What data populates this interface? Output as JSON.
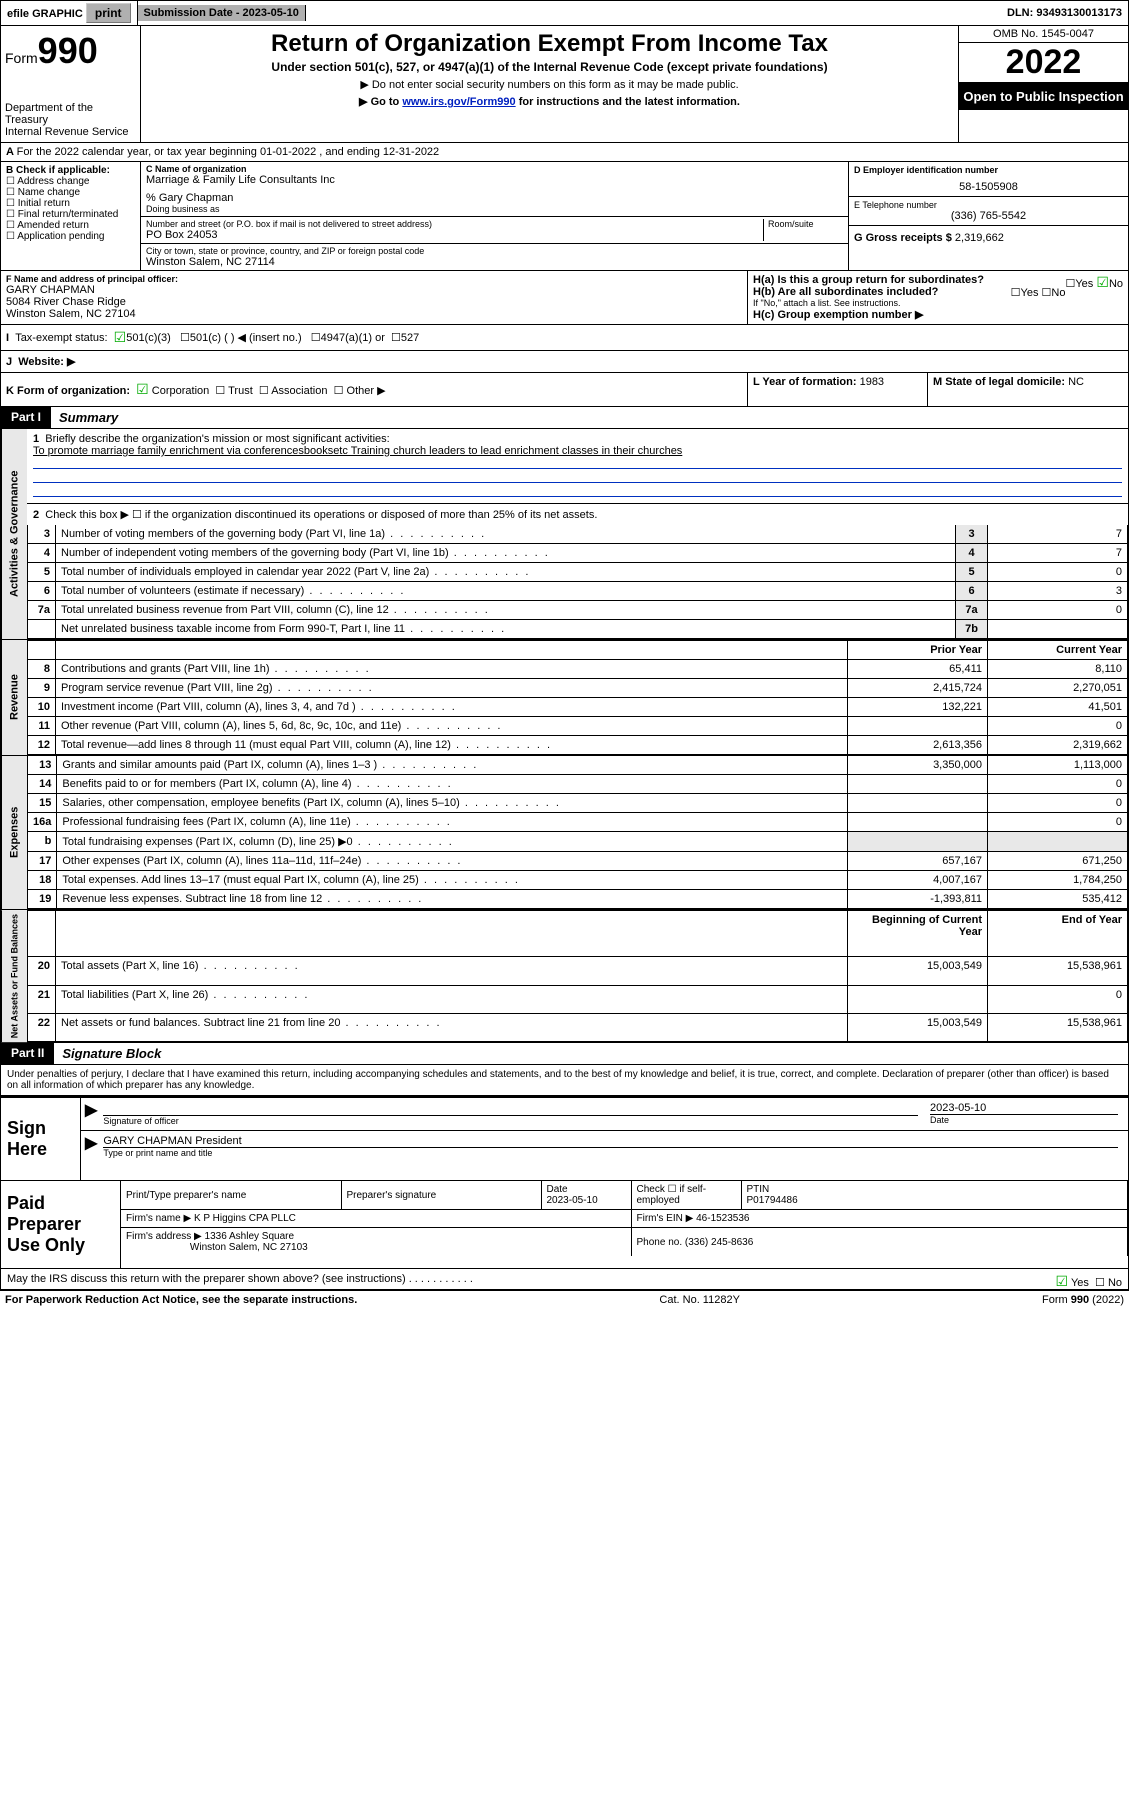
{
  "topbar": {
    "efile": "efile GRAPHIC",
    "print": "print",
    "sub_label": "Submission Date - 2023-05-10",
    "dln": "DLN: 93493130013173"
  },
  "header": {
    "form_label": "Form",
    "form_no": "990",
    "dept": "Department of the Treasury",
    "irs": "Internal Revenue Service",
    "title": "Return of Organization Exempt From Income Tax",
    "sub": "Under section 501(c), 527, or 4947(a)(1) of the Internal Revenue Code (except private foundations)",
    "note1": "▶ Do not enter social security numbers on this form as it may be made public.",
    "note2_pre": "▶ Go to ",
    "note2_link": "www.irs.gov/Form990",
    "note2_post": " for instructions and the latest information.",
    "omb": "OMB No. 1545-0047",
    "year": "2022",
    "open": "Open to Public Inspection"
  },
  "sectionA": {
    "text": "For the 2022 calendar year, or tax year beginning 01-01-2022     , and ending 12-31-2022"
  },
  "blockB": {
    "label": "B Check if applicable:",
    "items": [
      "Address change",
      "Name change",
      "Initial return",
      "Final return/terminated",
      "Amended return",
      "Application pending"
    ]
  },
  "blockC": {
    "name_label": "C Name of organization",
    "name": "Marriage & Family Life Consultants Inc",
    "care": "% Gary Chapman",
    "dba_label": "Doing business as",
    "street_label": "Number and street (or P.O. box if mail is not delivered to street address)",
    "room_label": "Room/suite",
    "street": "PO Box 24053",
    "city_label": "City or town, state or province, country, and ZIP or foreign postal code",
    "city": "Winston Salem, NC  27114"
  },
  "blockD": {
    "label": "D Employer identification number",
    "ein": "58-1505908"
  },
  "blockE": {
    "label": "E Telephone number",
    "phone": "(336) 765-5542"
  },
  "blockG": {
    "label": "G Gross receipts $",
    "val": "2,319,662"
  },
  "blockF": {
    "label": "F  Name and address of principal officer:",
    "name": "GARY CHAPMAN",
    "addr1": "5084 River Chase Ridge",
    "addr2": "Winston Salem, NC  27104"
  },
  "blockH": {
    "ha": "H(a)  Is this a group return for subordinates?",
    "hb": "H(b)  Are all subordinates included?",
    "hb_note": "If \"No,\" attach a list. See instructions.",
    "hc": "H(c)  Group exemption number ▶",
    "yes": "Yes",
    "no": "No"
  },
  "blockI": {
    "label": "Tax-exempt status:",
    "o1": "501(c)(3)",
    "o2": "501(c) (   ) ◀ (insert no.)",
    "o3": "4947(a)(1) or",
    "o4": "527"
  },
  "blockJ": {
    "label": "Website: ▶"
  },
  "blockK": {
    "label": "K Form of organization:",
    "o1": "Corporation",
    "o2": "Trust",
    "o3": "Association",
    "o4": "Other ▶"
  },
  "blockL": {
    "label": "L Year of formation:",
    "val": "1983"
  },
  "blockM": {
    "label": "M State of legal domicile:",
    "val": "NC"
  },
  "part1": {
    "hdr": "Part I",
    "title": "Summary",
    "l1_label": "Briefly describe the organization's mission or most significant activities:",
    "l1_text": "To promote marriage family enrichment via conferencesbooksetc Training church leaders to lead enrichment classes in their churches",
    "l2": "Check this box ▶ ☐  if the organization discontinued its operations or disposed of more than 25% of its net assets.",
    "rows_ag": [
      {
        "n": "3",
        "d": "Number of voting members of the governing body (Part VI, line 1a)",
        "rn": "3",
        "v": "7"
      },
      {
        "n": "4",
        "d": "Number of independent voting members of the governing body (Part VI, line 1b)",
        "rn": "4",
        "v": "7"
      },
      {
        "n": "5",
        "d": "Total number of individuals employed in calendar year 2022 (Part V, line 2a)",
        "rn": "5",
        "v": "0"
      },
      {
        "n": "6",
        "d": "Total number of volunteers (estimate if necessary)",
        "rn": "6",
        "v": "3"
      },
      {
        "n": "7a",
        "d": "Total unrelated business revenue from Part VIII, column (C), line 12",
        "rn": "7a",
        "v": "0"
      },
      {
        "n": "",
        "d": "Net unrelated business taxable income from Form 990-T, Part I, line 11",
        "rn": "7b",
        "v": ""
      }
    ],
    "hdr_prior": "Prior Year",
    "hdr_curr": "Current Year",
    "rows_rev": [
      {
        "n": "8",
        "d": "Contributions and grants (Part VIII, line 1h)",
        "p": "65,411",
        "c": "8,110"
      },
      {
        "n": "9",
        "d": "Program service revenue (Part VIII, line 2g)",
        "p": "2,415,724",
        "c": "2,270,051"
      },
      {
        "n": "10",
        "d": "Investment income (Part VIII, column (A), lines 3, 4, and 7d )",
        "p": "132,221",
        "c": "41,501"
      },
      {
        "n": "11",
        "d": "Other revenue (Part VIII, column (A), lines 5, 6d, 8c, 9c, 10c, and 11e)",
        "p": "",
        "c": "0"
      },
      {
        "n": "12",
        "d": "Total revenue—add lines 8 through 11 (must equal Part VIII, column (A), line 12)",
        "p": "2,613,356",
        "c": "2,319,662"
      }
    ],
    "rows_exp": [
      {
        "n": "13",
        "d": "Grants and similar amounts paid (Part IX, column (A), lines 1–3 )",
        "p": "3,350,000",
        "c": "1,113,000"
      },
      {
        "n": "14",
        "d": "Benefits paid to or for members (Part IX, column (A), line 4)",
        "p": "",
        "c": "0"
      },
      {
        "n": "15",
        "d": "Salaries, other compensation, employee benefits (Part IX, column (A), lines 5–10)",
        "p": "",
        "c": "0"
      },
      {
        "n": "16a",
        "d": "Professional fundraising fees (Part IX, column (A), line 11e)",
        "p": "",
        "c": "0"
      },
      {
        "n": "b",
        "d": "Total fundraising expenses (Part IX, column (D), line 25) ▶0",
        "p": "",
        "c": "",
        "gray": true
      },
      {
        "n": "17",
        "d": "Other expenses (Part IX, column (A), lines 11a–11d, 11f–24e)",
        "p": "657,167",
        "c": "671,250"
      },
      {
        "n": "18",
        "d": "Total expenses. Add lines 13–17 (must equal Part IX, column (A), line 25)",
        "p": "4,007,167",
        "c": "1,784,250"
      },
      {
        "n": "19",
        "d": "Revenue less expenses. Subtract line 18 from line 12",
        "p": "-1,393,811",
        "c": "535,412"
      }
    ],
    "hdr_begin": "Beginning of Current Year",
    "hdr_end": "End of Year",
    "rows_na": [
      {
        "n": "20",
        "d": "Total assets (Part X, line 16)",
        "p": "15,003,549",
        "c": "15,538,961"
      },
      {
        "n": "21",
        "d": "Total liabilities (Part X, line 26)",
        "p": "",
        "c": "0"
      },
      {
        "n": "22",
        "d": "Net assets or fund balances. Subtract line 21 from line 20",
        "p": "15,003,549",
        "c": "15,538,961"
      }
    ]
  },
  "part2": {
    "hdr": "Part II",
    "title": "Signature Block",
    "decl": "Under penalties of perjury, I declare that I have examined this return, including accompanying schedules and statements, and to the best of my knowledge and belief, it is true, correct, and complete. Declaration of preparer (other than officer) is based on all information of which preparer has any knowledge."
  },
  "sign": {
    "left": "Sign Here",
    "sig_label": "Signature of officer",
    "date_label": "Date",
    "date": "2023-05-10",
    "name": "GARY CHAPMAN President",
    "name_label": "Type or print name and title"
  },
  "preparer": {
    "left": "Paid Preparer Use Only",
    "h1": "Print/Type preparer's name",
    "h2": "Preparer's signature",
    "h3": "Date",
    "date": "2023-05-10",
    "h4": "Check ☐ if self-employed",
    "h5": "PTIN",
    "ptin": "P01794486",
    "firm_label": "Firm's name    ▶",
    "firm": "K P Higgins CPA PLLC",
    "ein_label": "Firm's EIN ▶",
    "ein": "46-1523536",
    "addr_label": "Firm's address ▶",
    "addr1": "1336 Ashley Square",
    "addr2": "Winston Salem, NC  27103",
    "phone_label": "Phone no.",
    "phone": "(336) 245-8636"
  },
  "discuss": {
    "q": "May the IRS discuss this return with the preparer shown above? (see instructions)",
    "yes": "Yes",
    "no": "No"
  },
  "footer": {
    "left": "For Paperwork Reduction Act Notice, see the separate instructions.",
    "mid": "Cat. No. 11282Y",
    "right": "Form 990 (2022)"
  },
  "vlabels": {
    "ag": "Activities & Governance",
    "rev": "Revenue",
    "exp": "Expenses",
    "na": "Net Assets or Fund Balances"
  }
}
